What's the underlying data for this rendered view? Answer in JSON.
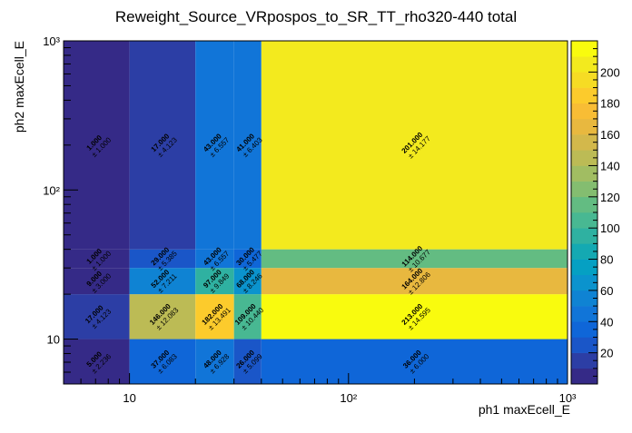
{
  "chart_data": {
    "type": "heatmap",
    "title": "Reweight_Source_VRpospos_to_SR_TT_rho320-440 total",
    "xlabel": "ph1 maxEcell_E",
    "ylabel": "ph2 maxEcell_E",
    "xscale": "log",
    "yscale": "log",
    "xlim": [
      5,
      1000
    ],
    "ylim": [
      5,
      1000
    ],
    "x_ticks": [
      {
        "value": 10,
        "label": "10"
      },
      {
        "value": 100,
        "label": "10²"
      },
      {
        "value": 1000,
        "label": "10³"
      }
    ],
    "y_ticks": [
      {
        "value": 10,
        "label": "10"
      },
      {
        "value": 100,
        "label": "10²"
      },
      {
        "value": 1000,
        "label": "10³"
      }
    ],
    "x_edges": [
      5,
      10,
      20,
      30,
      40,
      1000
    ],
    "y_edges": [
      5,
      10,
      20,
      30,
      40,
      1000
    ],
    "cells": [
      {
        "xi": 0,
        "yi": 0,
        "value": 5,
        "label": "5.000",
        "error": "± 2.236"
      },
      {
        "xi": 1,
        "yi": 0,
        "value": 37,
        "label": "37.000",
        "error": "± 6.083"
      },
      {
        "xi": 2,
        "yi": 0,
        "value": 48,
        "label": "48.000",
        "error": "± 6.928"
      },
      {
        "xi": 3,
        "yi": 0,
        "value": 26,
        "label": "26.000",
        "error": "± 5.099"
      },
      {
        "xi": 4,
        "yi": 0,
        "value": 36,
        "label": "36.000",
        "error": "± 6.000"
      },
      {
        "xi": 0,
        "yi": 1,
        "value": 17,
        "label": "17.000",
        "error": "± 4.123"
      },
      {
        "xi": 1,
        "yi": 1,
        "value": 146,
        "label": "146.000",
        "error": "± 12.083"
      },
      {
        "xi": 2,
        "yi": 1,
        "value": 182,
        "label": "182.000",
        "error": "± 13.491"
      },
      {
        "xi": 3,
        "yi": 1,
        "value": 109,
        "label": "109.000",
        "error": "± 10.440"
      },
      {
        "xi": 4,
        "yi": 1,
        "value": 213,
        "label": "213.000",
        "error": "± 14.595"
      },
      {
        "xi": 0,
        "yi": 2,
        "value": 9,
        "label": "9.000",
        "error": "± 3.000"
      },
      {
        "xi": 1,
        "yi": 2,
        "value": 52,
        "label": "52.000",
        "error": "± 7.211"
      },
      {
        "xi": 2,
        "yi": 2,
        "value": 97,
        "label": "97.000",
        "error": "± 9.849"
      },
      {
        "xi": 3,
        "yi": 2,
        "value": 68,
        "label": "68.000",
        "error": "± 8.246"
      },
      {
        "xi": 4,
        "yi": 2,
        "value": 164,
        "label": "164.000",
        "error": "± 12.806"
      },
      {
        "xi": 0,
        "yi": 3,
        "value": 1,
        "label": "1.000",
        "error": "± 1.000"
      },
      {
        "xi": 1,
        "yi": 3,
        "value": 29,
        "label": "29.000",
        "error": "± 5.385"
      },
      {
        "xi": 2,
        "yi": 3,
        "value": 43,
        "label": "43.000",
        "error": "± 6.557"
      },
      {
        "xi": 3,
        "yi": 3,
        "value": 30,
        "label": "30.000",
        "error": "± 5.477"
      },
      {
        "xi": 4,
        "yi": 3,
        "value": 114,
        "label": "114.000",
        "error": "± 10.677"
      },
      {
        "xi": 0,
        "yi": 4,
        "value": 1,
        "label": "1.000",
        "error": "± 1.000"
      },
      {
        "xi": 1,
        "yi": 4,
        "value": 17,
        "label": "17.000",
        "error": "± 4.123"
      },
      {
        "xi": 2,
        "yi": 4,
        "value": 43,
        "label": "43.000",
        "error": "± 6.557"
      },
      {
        "xi": 3,
        "yi": 4,
        "value": 41,
        "label": "41.000",
        "error": "± 6.403"
      },
      {
        "xi": 4,
        "yi": 4,
        "value": 201,
        "label": "201.000",
        "error": "± 14.177"
      }
    ],
    "colorbar": {
      "zlim": [
        0,
        220
      ],
      "ticks": [
        {
          "value": 20,
          "label": "20"
        },
        {
          "value": 40,
          "label": "40"
        },
        {
          "value": 60,
          "label": "60"
        },
        {
          "value": 80,
          "label": "80"
        },
        {
          "value": 100,
          "label": "100"
        },
        {
          "value": 120,
          "label": "120"
        },
        {
          "value": 140,
          "label": "140"
        },
        {
          "value": 160,
          "label": "160"
        },
        {
          "value": 180,
          "label": "180"
        },
        {
          "value": 200,
          "label": "200"
        }
      ],
      "palette": [
        "#352a87",
        "#2c3ea5",
        "#1a56c8",
        "#0f66d8",
        "#1175d8",
        "#0f83d3",
        "#0b93cd",
        "#05a0c3",
        "#14a9b2",
        "#2fb1a1",
        "#48b892",
        "#63bc82",
        "#84bd70",
        "#a1bd62",
        "#bcbb55",
        "#d3b84b",
        "#e8b83f",
        "#f8bd35",
        "#fccb2c",
        "#f6dc24",
        "#f3ea1e",
        "#f9fb0e"
      ]
    }
  }
}
